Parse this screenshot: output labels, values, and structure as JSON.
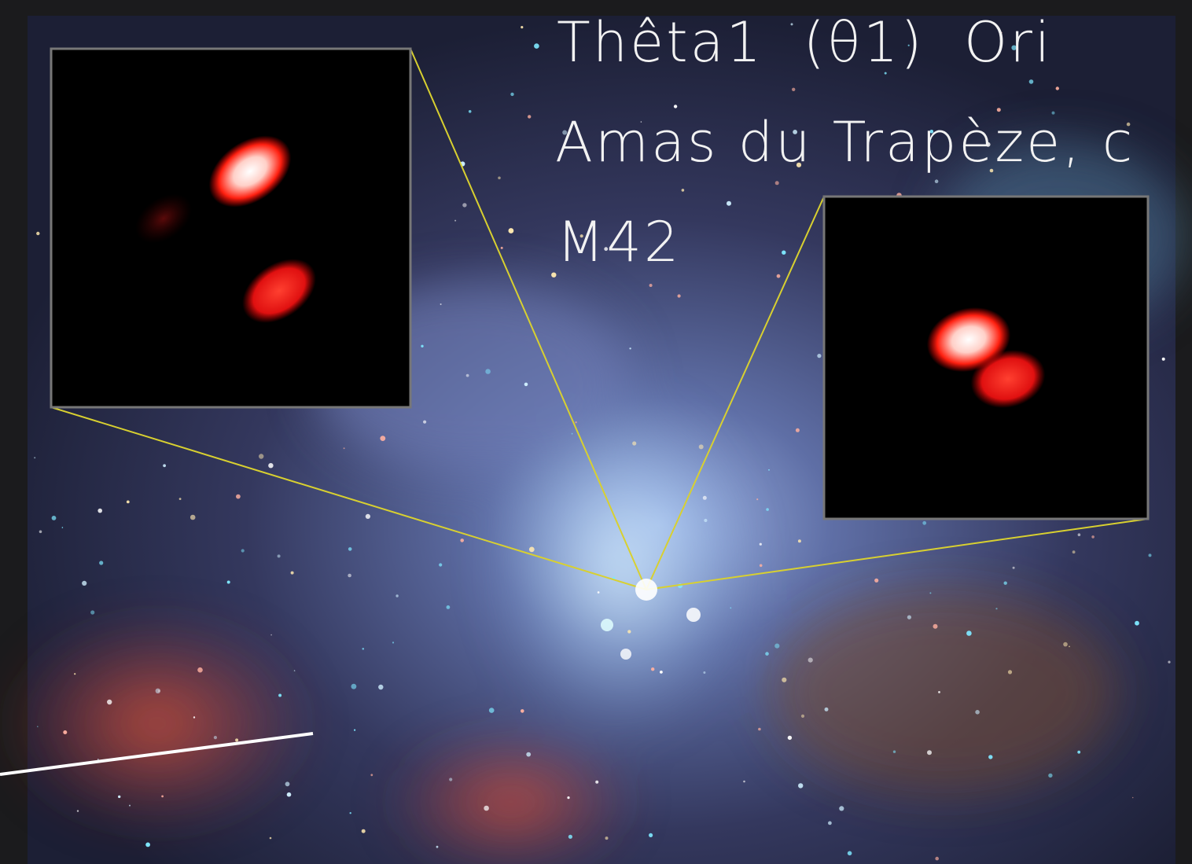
{
  "heading": {
    "lines": [
      "Thêta1  (θ1)  Ori",
      "Amas du Trapèze, c",
      "M42"
    ]
  }
}
